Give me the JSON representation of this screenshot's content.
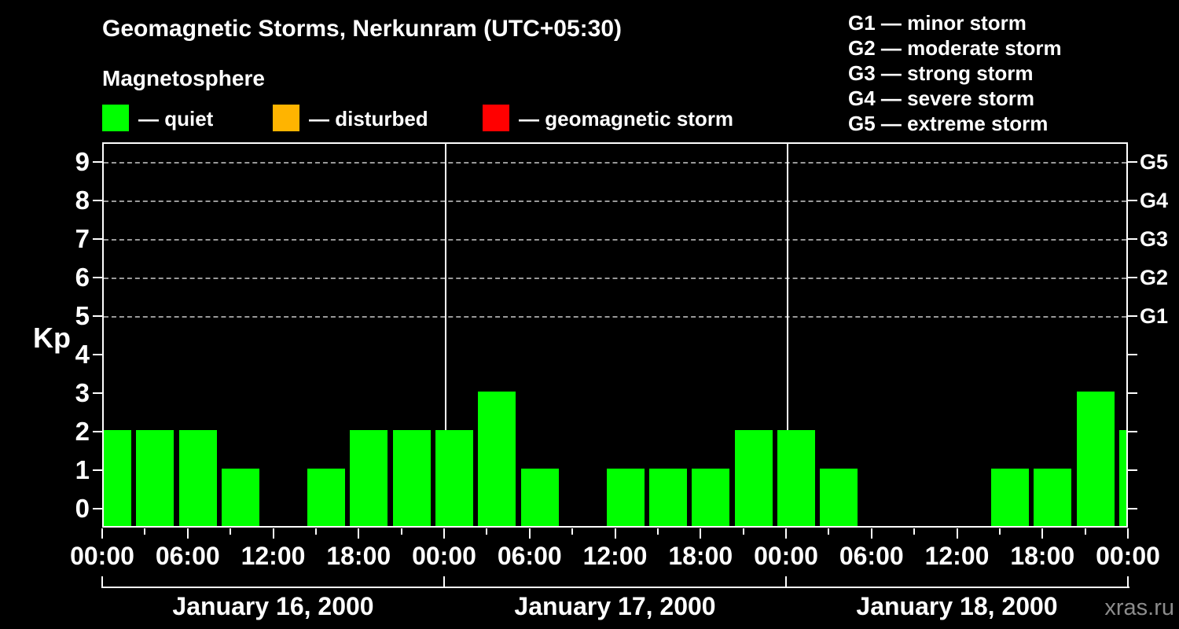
{
  "header": {
    "title": "Geomagnetic Storms, Nerkunram (UTC+05:30)",
    "subtitle": "Magnetosphere",
    "storm_scale_legend": [
      "G1 — minor storm",
      "G2 — moderate storm",
      "G3 — strong storm",
      "G4 — severe storm",
      "G5 — extreme storm"
    ]
  },
  "legend": {
    "items": [
      {
        "name": "quiet",
        "color": "#00ff00",
        "label": "— quiet"
      },
      {
        "name": "disturbed",
        "color": "#ffb400",
        "label": "— disturbed"
      },
      {
        "name": "geomagnetic-storm",
        "color": "#ff0000",
        "label": "— geomagnetic storm"
      }
    ]
  },
  "chart_data": {
    "type": "bar",
    "title": "Geomagnetic Storms, Nerkunram (UTC+05:30)",
    "subtitle": "Magnetosphere",
    "ylabel": "Kp",
    "ylim": [
      -0.5,
      9.5
    ],
    "yticks": [
      0,
      1,
      2,
      3,
      4,
      5,
      6,
      7,
      8,
      9
    ],
    "grid_levels": [
      5,
      6,
      7,
      8,
      9
    ],
    "right_axis_labels": [
      {
        "kp": 5,
        "label": "G1"
      },
      {
        "kp": 6,
        "label": "G2"
      },
      {
        "kp": 7,
        "label": "G3"
      },
      {
        "kp": 8,
        "label": "G4"
      },
      {
        "kp": 9,
        "label": "G5"
      }
    ],
    "x_tick_labels": [
      "00:00",
      "06:00",
      "12:00",
      "18:00",
      "00:00",
      "06:00",
      "12:00",
      "18:00",
      "00:00",
      "06:00",
      "12:00",
      "18:00",
      "00:00"
    ],
    "interval_hours": 3,
    "bar_color": "#00ff00",
    "grid_color": "#999999",
    "days": [
      {
        "date": "January 16, 2000",
        "kp": [
          2,
          2,
          2,
          1,
          0,
          1,
          2,
          2
        ]
      },
      {
        "date": "January 17, 2000",
        "kp": [
          2,
          3,
          1,
          0,
          1,
          1,
          1,
          2
        ]
      },
      {
        "date": "January 18, 2000",
        "kp": [
          2,
          1,
          0,
          0,
          0,
          1,
          1,
          3
        ]
      }
    ],
    "overflow_next_interval_kp": 2
  },
  "watermark": "xras.ru"
}
